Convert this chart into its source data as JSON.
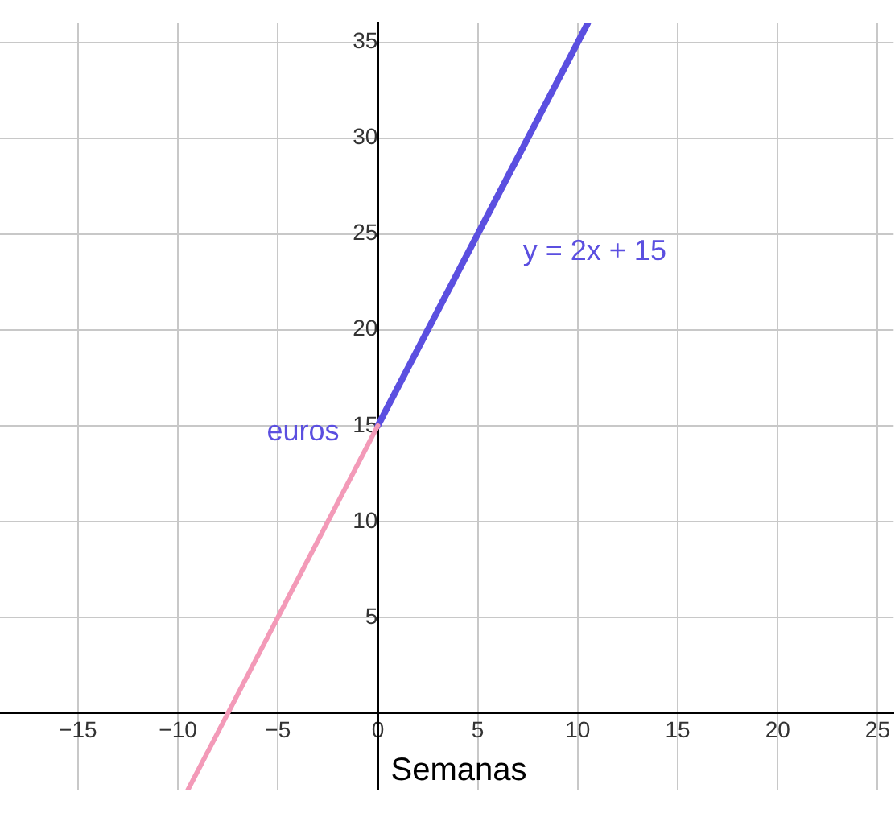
{
  "chart_data": {
    "type": "line",
    "xlabel": "Semanas",
    "xlim": [
      -18.9,
      25.8
    ],
    "ylim": [
      -4,
      36
    ],
    "xticks": [
      {
        "value": -15,
        "label": "−15"
      },
      {
        "value": -10,
        "label": "−10"
      },
      {
        "value": -5,
        "label": "−5"
      },
      0,
      5,
      10,
      15,
      20,
      25
    ],
    "yticks": [
      5,
      10,
      15,
      20,
      25,
      30,
      35
    ],
    "grid": true,
    "legend": false,
    "marker": "none",
    "line_style": "solid",
    "annotations": [
      {
        "text": "euros",
        "x": 0,
        "y": 15
      }
    ],
    "series": [
      {
        "color": "#f39ab8",
        "x": [
          -9.5,
          0
        ],
        "values": [
          -4,
          15
        ]
      },
      {
        "name": "y = 2x + 15",
        "color": "#5b4fe0",
        "x": [
          0,
          10.5
        ],
        "values": [
          15,
          36
        ]
      }
    ]
  }
}
